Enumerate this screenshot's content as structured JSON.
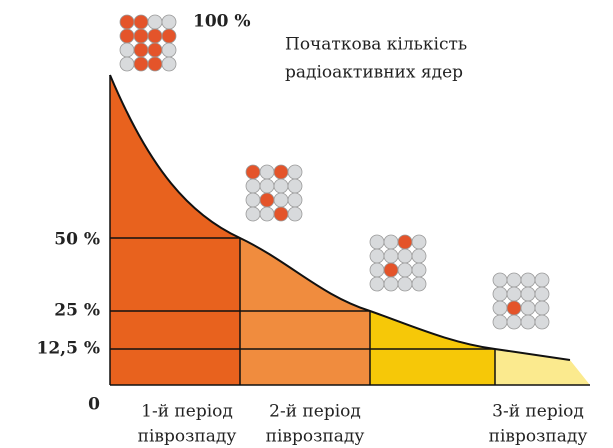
{
  "top_label": "100 %",
  "caption": [
    "Початкова кількість",
    "радіоактивних ядер"
  ],
  "y_labels": [
    "50 %",
    "25 %",
    "12,5 %"
  ],
  "origin_label": "0",
  "periods": [
    {
      "line1": "1-й період",
      "line2": "піврозпаду"
    },
    {
      "line1": "2-й період",
      "line2": "піврозпаду"
    },
    {
      "line1": "3-й період",
      "line2": "піврозпаду"
    }
  ]
}
